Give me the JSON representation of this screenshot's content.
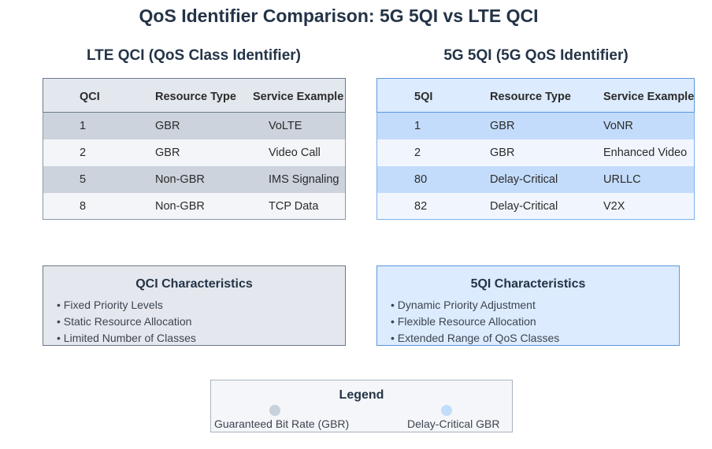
{
  "title": "QoS Identifier Comparison: 5G 5QI vs LTE QCI",
  "lte": {
    "section_title": "LTE QCI (QoS Class Identifier)",
    "headers": [
      "QCI",
      "Resource Type",
      "Service Example"
    ],
    "rows": [
      [
        "1",
        "GBR",
        "VoLTE"
      ],
      [
        "2",
        "GBR",
        "Video Call"
      ],
      [
        "5",
        "Non-GBR",
        "IMS Signaling"
      ],
      [
        "8",
        "Non-GBR",
        "TCP Data"
      ]
    ],
    "characteristics": {
      "title": "QCI Characteristics",
      "items": [
        "• Fixed Priority Levels",
        "• Static Resource Allocation",
        "• Limited Number of Classes"
      ]
    }
  },
  "nr": {
    "section_title": "5G 5QI (5G QoS Identifier)",
    "headers": [
      "5QI",
      "Resource Type",
      "Service Example"
    ],
    "rows": [
      [
        "1",
        "GBR",
        "VoNR"
      ],
      [
        "2",
        "GBR",
        "Enhanced Video"
      ],
      [
        "80",
        "Delay-Critical",
        "URLLC"
      ],
      [
        "82",
        "Delay-Critical",
        "V2X"
      ]
    ],
    "characteristics": {
      "title": "5QI Characteristics",
      "items": [
        "• Dynamic Priority Adjustment",
        "• Flexible Resource Allocation",
        "• Extended Range of QoS Classes"
      ]
    }
  },
  "legend": {
    "title": "Legend",
    "items": [
      {
        "label": "Guaranteed Bit Rate (GBR)",
        "color": "#c8d0db"
      },
      {
        "label": "Delay-Critical GBR",
        "color": "#c4dcfb"
      }
    ]
  },
  "colors": {
    "lte_header": "#e3e8ee",
    "lte_row_dark": "#ccd3dc",
    "nr_header": "#dcebfd",
    "nr_row_dark": "#c4dcfb",
    "title_text": "#243447"
  }
}
